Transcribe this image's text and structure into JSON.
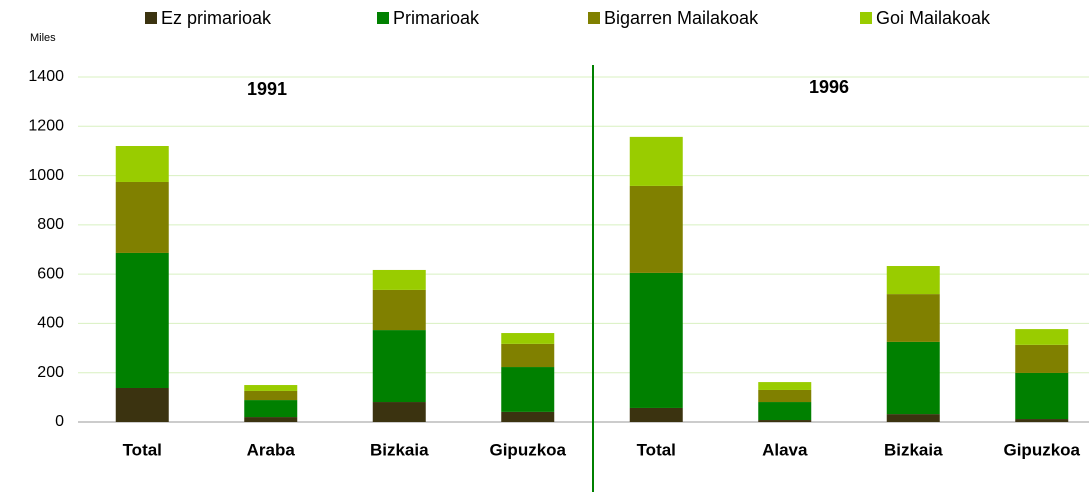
{
  "chart_data": {
    "type": "stacked_bar",
    "y_label": "Miles",
    "annotations": [
      "1991",
      "1996"
    ],
    "categories": [
      "Total",
      "Araba",
      "Bizkaia",
      "Gipuzkoa",
      "Total",
      "Alava",
      "Bizkaia",
      "Gipuzkoa"
    ],
    "series": [
      {
        "name": "Ez primarioak",
        "color": "#3b3310",
        "values": [
          138,
          20,
          81,
          41,
          57,
          8,
          32,
          12
        ]
      },
      {
        "name": "Primarioak",
        "color": "#008000",
        "values": [
          548,
          69,
          292,
          182,
          548,
          73,
          293,
          187
        ]
      },
      {
        "name": "Bigarren Mailakoak",
        "color": "#808000",
        "values": [
          288,
          37,
          163,
          94,
          353,
          49,
          194,
          114
        ]
      },
      {
        "name": "Goi Mailakoak",
        "color": "#99cc00",
        "values": [
          146,
          24,
          81,
          44,
          199,
          32,
          114,
          64
        ]
      }
    ],
    "ylim": [
      0,
      1400
    ],
    "yticks": [
      0,
      200,
      400,
      600,
      800,
      1000,
      1200,
      1400
    ],
    "grid": true
  }
}
